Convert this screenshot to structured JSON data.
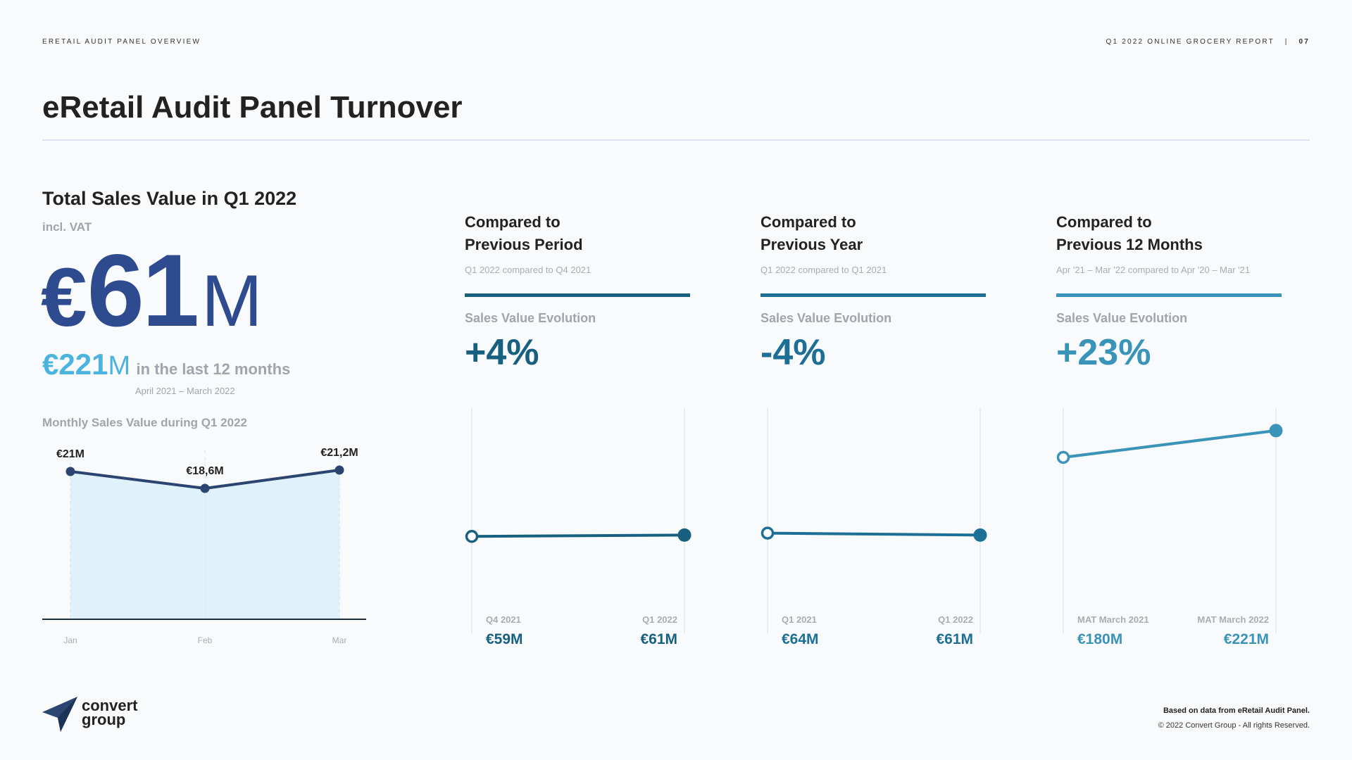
{
  "header": {
    "kicker_left": "ERETAIL AUDIT PANEL OVERVIEW",
    "kicker_right": "Q1 2022 ONLINE GROCERY REPORT",
    "separator": "|",
    "page_number": "07"
  },
  "title": "eRetail Audit Panel Turnover",
  "summary": {
    "heading": "Total Sales Value in Q1 2022",
    "note": "incl. VAT",
    "currency": "€",
    "value": "61",
    "unit": "M",
    "last12_value": "€221",
    "last12_unit": "M",
    "last12_text": "in the last 12 months",
    "last12_range": "April 2021 – March 2022",
    "monthly_heading": "Monthly Sales Value during Q1 2022"
  },
  "comparisons": [
    {
      "heading_line1": "Compared to",
      "heading_line2": "Previous Period",
      "subtitle": "Q1 2022 compared to Q4 2021",
      "metric_label": "Sales Value Evolution",
      "change": "+4%",
      "color": "#17607f",
      "from_label": "Q4 2021",
      "from_value": "€59M",
      "to_label": "Q1 2022",
      "to_value": "€61M"
    },
    {
      "heading_line1": "Compared to",
      "heading_line2": "Previous Year",
      "subtitle": "Q1 2022 compared to Q1 2021",
      "metric_label": "Sales Value Evolution",
      "change": "-4%",
      "color": "#1e6f96",
      "from_label": "Q1 2021",
      "from_value": "€64M",
      "to_label": "Q1 2022",
      "to_value": "€61M"
    },
    {
      "heading_line1": "Compared to",
      "heading_line2": "Previous 12 Months",
      "subtitle": "Apr '21 – Mar '22 compared to Apr '20 – Mar '21",
      "metric_label": "Sales Value Evolution",
      "change": "+23%",
      "color": "#3a93b8",
      "from_label": "MAT March 2021",
      "from_value": "€180M",
      "to_label": "MAT March 2022",
      "to_value": "€221M"
    }
  ],
  "chart_data": [
    {
      "type": "area",
      "title": "Monthly Sales Value during Q1 2022",
      "categories": [
        "Jan",
        "Feb",
        "Mar"
      ],
      "values": [
        21,
        18.6,
        21.2
      ],
      "data_labels": [
        "€21M",
        "€18,6M",
        "€21,2M"
      ],
      "ylabel": "€M",
      "ylim": [
        0,
        25
      ],
      "line_color": "#2b4570",
      "fill_color": "#dff1fa"
    },
    {
      "type": "line",
      "title": "Previous Period",
      "categories": [
        "Q4 2021",
        "Q1 2022"
      ],
      "values": [
        59,
        61
      ],
      "ylim": [
        0,
        250
      ]
    },
    {
      "type": "line",
      "title": "Previous Year",
      "categories": [
        "Q1 2021",
        "Q1 2022"
      ],
      "values": [
        64,
        61
      ],
      "ylim": [
        0,
        250
      ]
    },
    {
      "type": "line",
      "title": "Previous 12 Months",
      "categories": [
        "MAT March 2021",
        "MAT March 2022"
      ],
      "values": [
        180,
        221
      ],
      "ylim": [
        0,
        250
      ]
    }
  ],
  "footer": {
    "note": "Based on data from eRetail Audit Panel.",
    "copyright": "© 2022 Convert Group - All rights Reserved.",
    "logo_line1": "convert",
    "logo_line2": "group"
  }
}
